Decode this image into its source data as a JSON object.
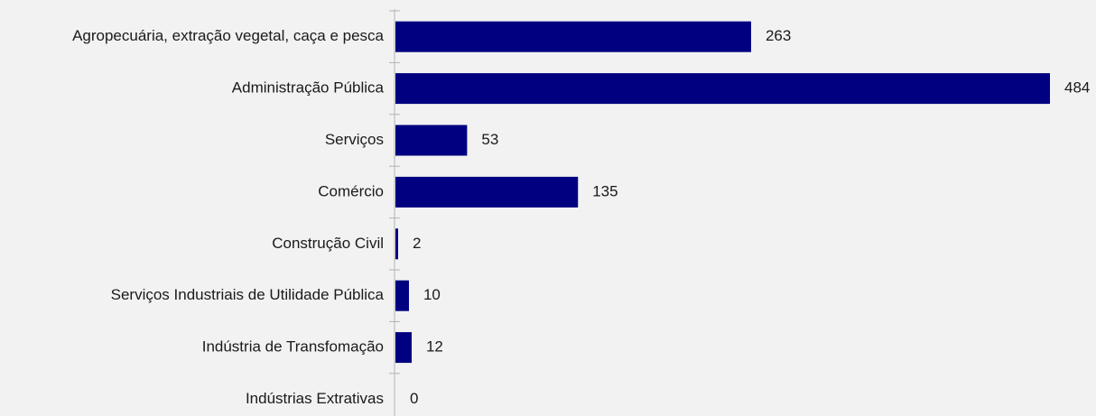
{
  "chart_data": {
    "type": "bar",
    "orientation": "horizontal",
    "categories": [
      "Agropecuária, extração vegetal, caça e pesca",
      "Administração Pública",
      "Serviços",
      "Comércio",
      "Construção Civil",
      "Serviços Industriais de Utilidade Pública",
      "Indústria de Transfomação",
      "Indústrias Extrativas"
    ],
    "values": [
      263,
      484,
      53,
      135,
      2,
      10,
      12,
      0
    ],
    "title": "",
    "xlabel": "",
    "ylabel": "",
    "xlim": [
      0,
      484
    ],
    "grid": false,
    "legend": "none",
    "bar_color": "#000080",
    "data_labels": true
  }
}
